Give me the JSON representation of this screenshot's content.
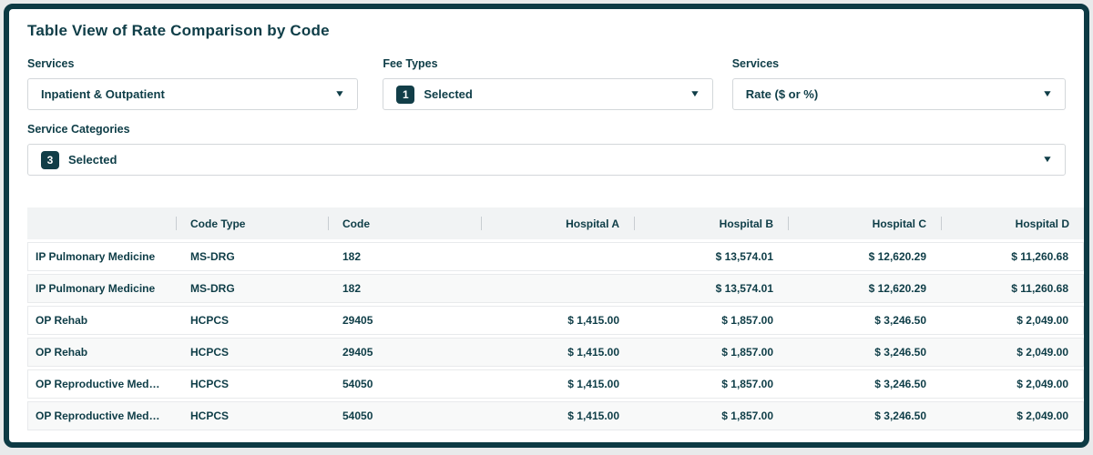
{
  "page": {
    "title": "Table View of Rate Comparison by Code"
  },
  "icons": {
    "dropdown_caret": "▼"
  },
  "colors": {
    "ink": "#0e3d47",
    "frame_border": "#0d3a44",
    "badge_bg": "#123e48",
    "header_bg": "#f1f3f4",
    "row_alt_bg": "#f8f9f9"
  },
  "filters": {
    "services_left": {
      "label": "Services",
      "value": "Inpatient & Outpatient"
    },
    "fee_types": {
      "label": "Fee Types",
      "badge": "1",
      "value": "Selected"
    },
    "services_right": {
      "label": "Services",
      "value": "Rate ($ or %)"
    },
    "service_categories": {
      "label": "Service Categories",
      "badge": "3",
      "value": "Selected"
    }
  },
  "table": {
    "columns": [
      "",
      "Code Type",
      "Code",
      "Hospital A",
      "Hospital B",
      "Hospital C",
      "Hospital D"
    ],
    "rows": [
      {
        "cells": [
          "IP Pulmonary Medicine",
          "MS-DRG",
          "182",
          "",
          "$ 13,574.01",
          "$ 12,620.29",
          "$ 11,260.68"
        ]
      },
      {
        "cells": [
          "IP Pulmonary Medicine",
          "MS-DRG",
          "182",
          "",
          "$ 13,574.01",
          "$ 12,620.29",
          "$ 11,260.68"
        ]
      },
      {
        "cells": [
          "OP Rehab",
          "HCPCS",
          "29405",
          "$ 1,415.00",
          "$ 1,857.00",
          "$ 3,246.50",
          "$ 2,049.00"
        ]
      },
      {
        "cells": [
          "OP Rehab",
          "HCPCS",
          "29405",
          "$ 1,415.00",
          "$ 1,857.00",
          "$ 3,246.50",
          "$ 2,049.00"
        ]
      },
      {
        "cells": [
          "OP Reproductive Medici...",
          "HCPCS",
          "54050",
          "$ 1,415.00",
          "$ 1,857.00",
          "$ 3,246.50",
          "$ 2,049.00"
        ]
      },
      {
        "cells": [
          "OP Reproductive Medici...",
          "HCPCS",
          "54050",
          "$ 1,415.00",
          "$ 1,857.00",
          "$ 3,246.50",
          "$ 2,049.00"
        ]
      }
    ]
  }
}
